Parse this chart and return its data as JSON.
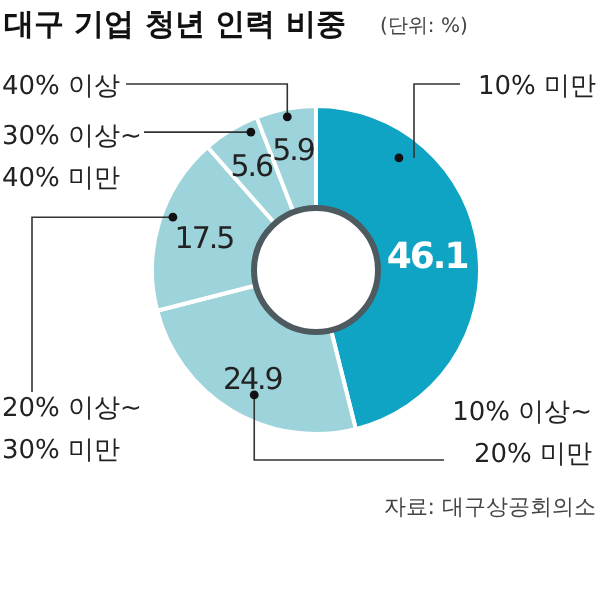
{
  "chart_data": {
    "type": "donut",
    "title": "대구 기업 청년 인력 비중",
    "subtitle": "(단위: %)",
    "categories": [
      "10% 미만",
      "10% 이상~\n20% 미만",
      "20% 이상~\n30% 미만",
      "30% 이상~\n40% 미만",
      "40% 이상"
    ],
    "values": [
      46.1,
      24.9,
      17.5,
      5.6,
      5.9
    ],
    "colors": [
      "#0fa3c4",
      "#9dd3da",
      "#9dd3da",
      "#9dd3da",
      "#9dd3da"
    ],
    "data_labels": true,
    "annotations": [
      "자료: 대구상공회의소"
    ]
  }
}
